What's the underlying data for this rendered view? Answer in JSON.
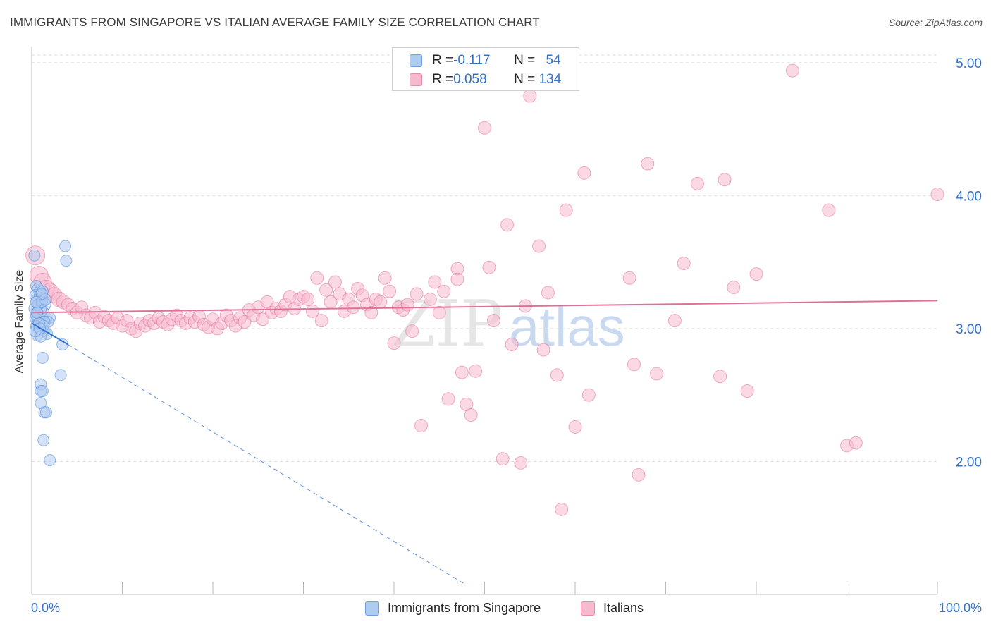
{
  "title": "IMMIGRANTS FROM SINGAPORE VS ITALIAN AVERAGE FAMILY SIZE CORRELATION CHART",
  "source": "Source: ZipAtlas.com",
  "watermark": {
    "part1": "ZIP",
    "part2": "atlas"
  },
  "legend_stats": [
    {
      "r_label": "R = ",
      "r_value": "-0.117",
      "n_label": "N = ",
      "n_value": "54",
      "color": "#aecbf0",
      "border": "#6d9fe0"
    },
    {
      "r_label": "R = ",
      "r_value": "0.058",
      "n_label": "N = ",
      "n_value": "134",
      "color": "#f7b9cd",
      "border": "#e88aa9"
    }
  ],
  "chart_data": {
    "type": "scatter",
    "xlabel": "",
    "ylabel": "Average Family Size",
    "x_tick_labels": [
      "0.0%",
      "100.0%"
    ],
    "y_tick_labels": [
      "2.00",
      "3.00",
      "4.00",
      "5.00"
    ],
    "xlim": [
      0,
      100
    ],
    "ylim": [
      1.0,
      5.1
    ],
    "y_ticks": [
      2.0,
      3.0,
      4.0,
      5.0
    ],
    "x_minor_ticks": [
      0,
      10,
      20,
      30,
      40,
      50,
      60,
      70,
      80,
      90,
      100
    ],
    "grid": true,
    "legend_position": "top-center",
    "series": [
      {
        "name": "Immigrants from Singapore",
        "color": "#4a86d8",
        "fill": "#aecbf0",
        "trend": {
          "x0": 0.0,
          "y0": 3.04,
          "x1": 4.0,
          "y1": 2.88,
          "dashed_to_x": 48.0,
          "dashed_to_y": 1.07
        },
        "points": [
          [
            0.3,
            3.55
          ],
          [
            0.5,
            3.32
          ],
          [
            0.7,
            3.3
          ],
          [
            0.9,
            3.28
          ],
          [
            0.4,
            3.25
          ],
          [
            0.6,
            3.22
          ],
          [
            1.0,
            3.2
          ],
          [
            0.8,
            3.18
          ],
          [
            1.2,
            3.22
          ],
          [
            1.5,
            3.18
          ],
          [
            0.3,
            3.15
          ],
          [
            0.6,
            3.12
          ],
          [
            0.9,
            3.1
          ],
          [
            1.3,
            3.12
          ],
          [
            1.6,
            3.08
          ],
          [
            0.4,
            3.08
          ],
          [
            0.7,
            3.06
          ],
          [
            1.1,
            3.05
          ],
          [
            2.0,
            3.08
          ],
          [
            1.8,
            3.05
          ],
          [
            0.5,
            3.02
          ],
          [
            0.8,
            3.0
          ],
          [
            1.4,
            2.98
          ],
          [
            1.7,
            2.96
          ],
          [
            0.6,
            2.95
          ],
          [
            1.0,
            2.94
          ],
          [
            0.9,
            3.25
          ],
          [
            1.2,
            3.28
          ],
          [
            0.5,
            3.1
          ],
          [
            1.0,
            3.15
          ],
          [
            1.4,
            3.05
          ],
          [
            0.7,
            3.18
          ],
          [
            1.1,
            3.2
          ],
          [
            1.3,
            3.02
          ],
          [
            0.4,
            2.98
          ],
          [
            0.8,
            3.04
          ],
          [
            3.7,
            3.62
          ],
          [
            3.8,
            3.51
          ],
          [
            3.4,
            2.88
          ],
          [
            3.2,
            2.65
          ],
          [
            1.2,
            2.78
          ],
          [
            1.0,
            2.58
          ],
          [
            1.0,
            2.53
          ],
          [
            1.2,
            2.53
          ],
          [
            1.0,
            2.44
          ],
          [
            1.4,
            2.37
          ],
          [
            1.6,
            2.37
          ],
          [
            1.3,
            2.16
          ],
          [
            2.0,
            2.01
          ],
          [
            0.6,
            3.12
          ],
          [
            1.5,
            3.22
          ],
          [
            0.9,
            3.0
          ],
          [
            1.1,
            3.26
          ],
          [
            0.5,
            3.2
          ]
        ]
      },
      {
        "name": "Italians",
        "color": "#e0709a",
        "fill": "#f7b9cd",
        "trend": {
          "x0": 0.0,
          "y0": 3.12,
          "x1": 100.0,
          "y1": 3.21
        },
        "points": [
          [
            0.4,
            3.55
          ],
          [
            0.8,
            3.4
          ],
          [
            1.2,
            3.35
          ],
          [
            1.6,
            3.3
          ],
          [
            2.0,
            3.28
          ],
          [
            2.5,
            3.25
          ],
          [
            3.0,
            3.22
          ],
          [
            3.5,
            3.2
          ],
          [
            4.0,
            3.18
          ],
          [
            4.5,
            3.15
          ],
          [
            5.0,
            3.12
          ],
          [
            5.5,
            3.16
          ],
          [
            6.0,
            3.1
          ],
          [
            6.5,
            3.08
          ],
          [
            7.0,
            3.12
          ],
          [
            7.5,
            3.05
          ],
          [
            8.0,
            3.09
          ],
          [
            8.5,
            3.06
          ],
          [
            9.0,
            3.04
          ],
          [
            9.5,
            3.08
          ],
          [
            10.0,
            3.02
          ],
          [
            10.5,
            3.06
          ],
          [
            11.0,
            3.0
          ],
          [
            11.5,
            2.98
          ],
          [
            12.0,
            3.04
          ],
          [
            12.5,
            3.02
          ],
          [
            13.0,
            3.06
          ],
          [
            13.5,
            3.04
          ],
          [
            14.0,
            3.08
          ],
          [
            14.5,
            3.05
          ],
          [
            15.0,
            3.03
          ],
          [
            15.5,
            3.07
          ],
          [
            16.0,
            3.1
          ],
          [
            16.5,
            3.06
          ],
          [
            17.0,
            3.04
          ],
          [
            17.5,
            3.08
          ],
          [
            18.0,
            3.05
          ],
          [
            18.5,
            3.09
          ],
          [
            19.0,
            3.03
          ],
          [
            19.5,
            3.01
          ],
          [
            20.0,
            3.07
          ],
          [
            20.5,
            3.0
          ],
          [
            21.0,
            3.04
          ],
          [
            21.5,
            3.1
          ],
          [
            22.0,
            3.06
          ],
          [
            22.5,
            3.02
          ],
          [
            23.0,
            3.08
          ],
          [
            23.5,
            3.05
          ],
          [
            24.0,
            3.14
          ],
          [
            24.5,
            3.1
          ],
          [
            25.0,
            3.16
          ],
          [
            25.5,
            3.07
          ],
          [
            26.0,
            3.2
          ],
          [
            26.5,
            3.12
          ],
          [
            27.0,
            3.15
          ],
          [
            27.5,
            3.13
          ],
          [
            28.0,
            3.18
          ],
          [
            28.5,
            3.24
          ],
          [
            29.0,
            3.15
          ],
          [
            29.5,
            3.22
          ],
          [
            30.0,
            3.24
          ],
          [
            30.5,
            3.22
          ],
          [
            31.0,
            3.13
          ],
          [
            31.5,
            3.38
          ],
          [
            32.0,
            3.06
          ],
          [
            32.5,
            3.29
          ],
          [
            33.0,
            3.2
          ],
          [
            33.5,
            3.35
          ],
          [
            34.0,
            3.26
          ],
          [
            34.5,
            3.13
          ],
          [
            35.0,
            3.22
          ],
          [
            35.5,
            3.16
          ],
          [
            36.0,
            3.3
          ],
          [
            36.5,
            3.25
          ],
          [
            37.0,
            3.18
          ],
          [
            37.5,
            3.12
          ],
          [
            38.0,
            3.22
          ],
          [
            38.5,
            3.2
          ],
          [
            39.0,
            3.38
          ],
          [
            39.5,
            3.28
          ],
          [
            40.0,
            2.89
          ],
          [
            40.5,
            3.16
          ],
          [
            41.0,
            3.14
          ],
          [
            41.5,
            3.18
          ],
          [
            42.0,
            2.98
          ],
          [
            42.5,
            3.26
          ],
          [
            43.0,
            2.27
          ],
          [
            44.0,
            3.22
          ],
          [
            44.5,
            3.35
          ],
          [
            45.0,
            3.12
          ],
          [
            45.5,
            3.28
          ],
          [
            46.0,
            2.47
          ],
          [
            47.0,
            3.45
          ],
          [
            47.0,
            3.37
          ],
          [
            47.5,
            2.67
          ],
          [
            48.0,
            2.43
          ],
          [
            48.5,
            2.35
          ],
          [
            49.0,
            2.68
          ],
          [
            50.0,
            4.51
          ],
          [
            50.5,
            3.46
          ],
          [
            51.0,
            3.06
          ],
          [
            52.0,
            2.02
          ],
          [
            52.5,
            3.78
          ],
          [
            53.0,
            2.88
          ],
          [
            54.0,
            1.99
          ],
          [
            54.5,
            3.17
          ],
          [
            55.0,
            4.75
          ],
          [
            56.0,
            3.62
          ],
          [
            56.5,
            2.84
          ],
          [
            57.0,
            3.27
          ],
          [
            58.0,
            2.65
          ],
          [
            58.5,
            1.64
          ],
          [
            59.0,
            3.89
          ],
          [
            60.0,
            2.26
          ],
          [
            61.0,
            4.17
          ],
          [
            61.5,
            2.5
          ],
          [
            66.0,
            3.38
          ],
          [
            66.5,
            2.73
          ],
          [
            67.0,
            1.9
          ],
          [
            68.0,
            4.24
          ],
          [
            69.0,
            2.66
          ],
          [
            71.0,
            3.06
          ],
          [
            72.0,
            3.49
          ],
          [
            73.5,
            4.09
          ],
          [
            76.0,
            2.64
          ],
          [
            76.5,
            4.12
          ],
          [
            77.5,
            3.31
          ],
          [
            79.0,
            2.53
          ],
          [
            80.0,
            3.41
          ],
          [
            84.0,
            4.94
          ],
          [
            88.0,
            3.89
          ],
          [
            90.0,
            2.12
          ],
          [
            91.0,
            2.14
          ],
          [
            100.0,
            4.01
          ]
        ]
      }
    ]
  }
}
